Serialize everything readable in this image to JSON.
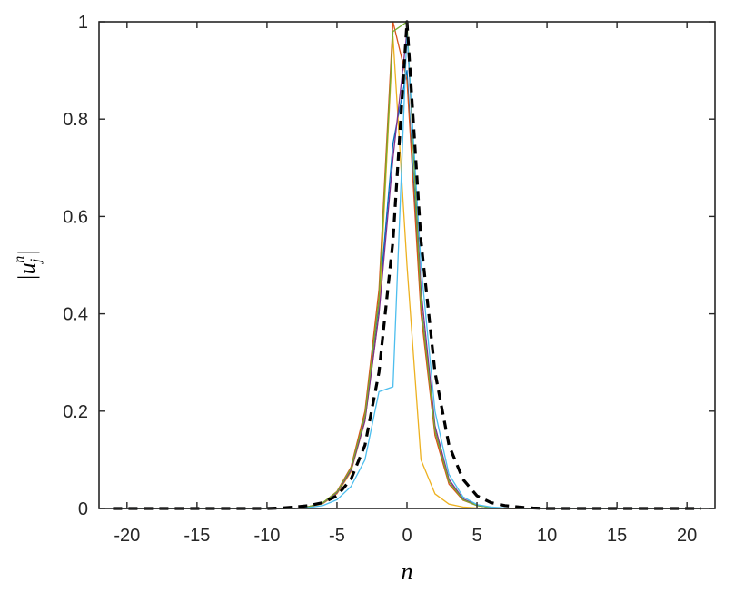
{
  "chart_data": {
    "type": "line",
    "title": "",
    "xlabel": "n",
    "ylabel": "|u_j^n|",
    "xlim": [
      -22,
      22
    ],
    "ylim": [
      0,
      1
    ],
    "grid": false,
    "legend": "none",
    "x_ticks": [
      -20,
      -15,
      -10,
      -5,
      0,
      5,
      10,
      15,
      20
    ],
    "x_tick_labels": [
      "-20",
      "-15",
      "-10",
      "-5",
      "0",
      "5",
      "10",
      "15",
      "20"
    ],
    "y_ticks": [
      0,
      0.2,
      0.4,
      0.6,
      0.8,
      1
    ],
    "y_tick_labels": [
      "0",
      "0.2",
      "0.4",
      "0.6",
      "0.8",
      "1"
    ],
    "series": [
      {
        "color": "#0072BD",
        "style": "solid",
        "x": [
          -21,
          -20,
          -19,
          -18,
          -17,
          -16,
          -15,
          -14,
          -13,
          -12,
          -11,
          -10,
          -9,
          -8,
          -7,
          -6,
          -5,
          -4,
          -3,
          -2,
          -1,
          0,
          1,
          2,
          3,
          4,
          5,
          6,
          7,
          8,
          9,
          10,
          11,
          12,
          13,
          14,
          15,
          16,
          17,
          18,
          19,
          20,
          21
        ],
        "values": [
          0,
          0,
          0,
          0,
          0,
          0,
          0,
          0,
          0,
          0,
          0,
          0,
          0,
          0,
          0.004,
          0.012,
          0.033,
          0.08,
          0.19,
          0.42,
          0.75,
          0.9,
          0.42,
          0.16,
          0.055,
          0.018,
          0.006,
          0.002,
          0,
          0,
          0,
          0,
          0,
          0,
          0,
          0,
          0,
          0,
          0,
          0,
          0,
          0,
          0
        ]
      },
      {
        "color": "#D95319",
        "style": "solid",
        "x": [
          -21,
          -20,
          -19,
          -18,
          -17,
          -16,
          -15,
          -14,
          -13,
          -12,
          -11,
          -10,
          -9,
          -8,
          -7,
          -6,
          -5,
          -4,
          -3,
          -2,
          -1,
          0,
          1,
          2,
          3,
          4,
          5,
          6,
          7,
          8,
          9,
          10,
          11,
          12,
          13,
          14,
          15,
          16,
          17,
          18,
          19,
          20,
          21
        ],
        "values": [
          0,
          0,
          0,
          0,
          0,
          0,
          0,
          0,
          0,
          0,
          0,
          0,
          0,
          0,
          0.004,
          0.012,
          0.035,
          0.085,
          0.2,
          0.45,
          1.0,
          0.88,
          0.4,
          0.15,
          0.05,
          0.017,
          0.006,
          0.002,
          0,
          0,
          0,
          0,
          0,
          0,
          0,
          0,
          0,
          0,
          0,
          0,
          0,
          0,
          0
        ]
      },
      {
        "color": "#EDB120",
        "style": "solid",
        "x": [
          -21,
          -20,
          -19,
          -18,
          -17,
          -16,
          -15,
          -14,
          -13,
          -12,
          -11,
          -10,
          -9,
          -8,
          -7,
          -6,
          -5,
          -4,
          -3,
          -2,
          -1,
          0,
          1,
          2,
          3,
          4,
          5,
          6,
          7,
          8,
          9,
          10,
          11,
          12,
          13,
          14,
          15,
          16,
          17,
          18,
          19,
          20,
          21
        ],
        "values": [
          0,
          0,
          0,
          0,
          0,
          0,
          0,
          0,
          0,
          0,
          0,
          0,
          0,
          0,
          0.003,
          0.01,
          0.03,
          0.075,
          0.18,
          0.4,
          0.97,
          0.5,
          0.1,
          0.03,
          0.009,
          0.003,
          0.001,
          0,
          0,
          0,
          0,
          0,
          0,
          0,
          0,
          0,
          0,
          0,
          0,
          0,
          0,
          0,
          0
        ]
      },
      {
        "color": "#7E2F8E",
        "style": "solid",
        "x": [
          -21,
          -20,
          -19,
          -18,
          -17,
          -16,
          -15,
          -14,
          -13,
          -12,
          -11,
          -10,
          -9,
          -8,
          -7,
          -6,
          -5,
          -4,
          -3,
          -2,
          -1,
          0,
          1,
          2,
          3,
          4,
          5,
          6,
          7,
          8,
          9,
          10,
          11,
          12,
          13,
          14,
          15,
          16,
          17,
          18,
          19,
          20,
          21
        ],
        "values": [
          0,
          0,
          0,
          0,
          0,
          0,
          0,
          0,
          0,
          0,
          0,
          0,
          0,
          0,
          0.004,
          0.011,
          0.032,
          0.078,
          0.18,
          0.4,
          0.72,
          0.98,
          0.45,
          0.17,
          0.06,
          0.02,
          0.007,
          0.002,
          0,
          0,
          0,
          0,
          0,
          0,
          0,
          0,
          0,
          0,
          0,
          0,
          0,
          0,
          0
        ]
      },
      {
        "color": "#77AC30",
        "style": "solid",
        "x": [
          -21,
          -20,
          -19,
          -18,
          -17,
          -16,
          -15,
          -14,
          -13,
          -12,
          -11,
          -10,
          -9,
          -8,
          -7,
          -6,
          -5,
          -4,
          -3,
          -2,
          -1,
          0,
          1,
          2,
          3,
          4,
          5,
          6,
          7,
          8,
          9,
          10,
          11,
          12,
          13,
          14,
          15,
          16,
          17,
          18,
          19,
          20,
          21
        ],
        "values": [
          0,
          0,
          0,
          0,
          0,
          0,
          0,
          0,
          0,
          0,
          0,
          0,
          0,
          0,
          0.004,
          0.012,
          0.034,
          0.082,
          0.19,
          0.43,
          0.98,
          1.0,
          0.42,
          0.16,
          0.055,
          0.018,
          0.006,
          0.002,
          0,
          0,
          0,
          0,
          0,
          0,
          0,
          0,
          0,
          0,
          0,
          0,
          0,
          0,
          0
        ]
      },
      {
        "color": "#4DBEEE",
        "style": "solid",
        "x": [
          -21,
          -20,
          -19,
          -18,
          -17,
          -16,
          -15,
          -14,
          -13,
          -12,
          -11,
          -10,
          -9,
          -8,
          -7,
          -6,
          -5,
          -4,
          -3,
          -2,
          -1,
          0,
          1,
          2,
          3,
          4,
          5,
          6,
          7,
          8,
          9,
          10,
          11,
          12,
          13,
          14,
          15,
          16,
          17,
          18,
          19,
          20,
          21
        ],
        "values": [
          0,
          0,
          0,
          0,
          0,
          0,
          0,
          0,
          0,
          0,
          0,
          0,
          0,
          0,
          0.002,
          0.006,
          0.018,
          0.045,
          0.1,
          0.24,
          0.25,
          0.98,
          0.5,
          0.2,
          0.07,
          0.024,
          0.008,
          0.003,
          0.001,
          0,
          0,
          0,
          0,
          0,
          0,
          0,
          0,
          0,
          0,
          0,
          0,
          0,
          0
        ]
      },
      {
        "color": "#000000",
        "style": "dashed",
        "x": [
          -21,
          -20,
          -19,
          -18,
          -17,
          -16,
          -15,
          -14,
          -13,
          -12,
          -11,
          -10,
          -9,
          -8,
          -7,
          -6,
          -5,
          -4,
          -3,
          -2,
          -1,
          0,
          1,
          2,
          3,
          4,
          5,
          6,
          7,
          8,
          9,
          10,
          11,
          12,
          13,
          14,
          15,
          16,
          17,
          18,
          19,
          20,
          21
        ],
        "values": [
          0,
          0,
          0,
          0,
          0,
          0,
          0,
          0,
          0,
          0,
          0,
          0,
          0.001,
          0.003,
          0.006,
          0.012,
          0.026,
          0.06,
          0.13,
          0.28,
          0.55,
          1.0,
          0.55,
          0.28,
          0.13,
          0.06,
          0.026,
          0.012,
          0.006,
          0.003,
          0.001,
          0,
          0,
          0,
          0,
          0,
          0,
          0,
          0,
          0,
          0,
          0,
          0
        ]
      }
    ]
  }
}
